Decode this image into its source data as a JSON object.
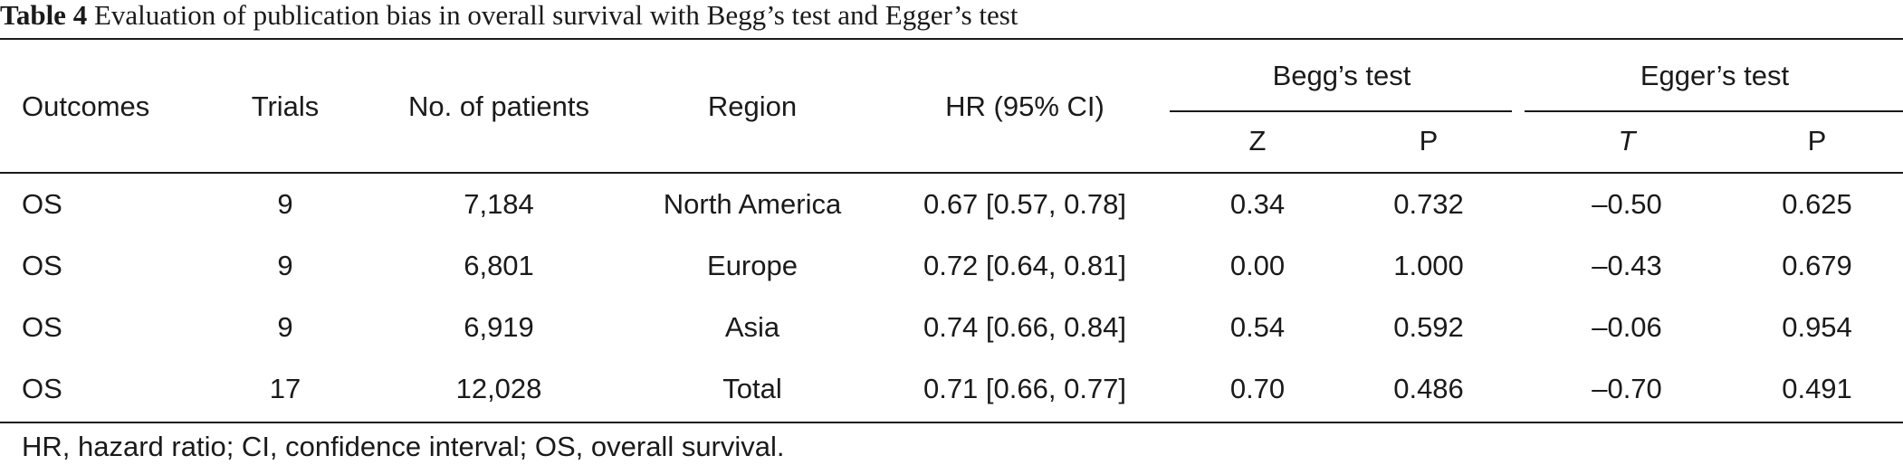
{
  "caption": {
    "label": "Table 4",
    "text": " Evaluation of publication bias in overall survival with Begg’s test and Egger’s test"
  },
  "headers": {
    "outcomes": "Outcomes",
    "trials": "Trials",
    "patients": "No. of patients",
    "region": "Region",
    "hr": "HR (95% CI)",
    "begg": "Begg’s test",
    "egger": "Egger’s test",
    "begg_z": "Z",
    "begg_p": "P",
    "egger_t": "T",
    "egger_p": "P"
  },
  "rows": [
    {
      "outcome": "OS",
      "trials": "9",
      "patients": "7,184",
      "region": "North America",
      "hr": "0.67 [0.57, 0.78]",
      "z": "0.34",
      "p_begg": "0.732",
      "t": "–0.50",
      "p_egger": "0.625"
    },
    {
      "outcome": "OS",
      "trials": "9",
      "patients": "6,801",
      "region": "Europe",
      "hr": "0.72 [0.64, 0.81]",
      "z": "0.00",
      "p_begg": "1.000",
      "t": "–0.43",
      "p_egger": "0.679"
    },
    {
      "outcome": "OS",
      "trials": "9",
      "patients": "6,919",
      "region": "Asia",
      "hr": "0.74 [0.66, 0.84]",
      "z": "0.54",
      "p_begg": "0.592",
      "t": "–0.06",
      "p_egger": "0.954"
    },
    {
      "outcome": "OS",
      "trials": "17",
      "patients": "12,028",
      "region": "Total",
      "hr": "0.71 [0.66, 0.77]",
      "z": "0.70",
      "p_begg": "0.486",
      "t": "–0.70",
      "p_egger": "0.491"
    }
  ],
  "footnote": "HR, hazard ratio; CI, confidence interval; OS, overall survival."
}
